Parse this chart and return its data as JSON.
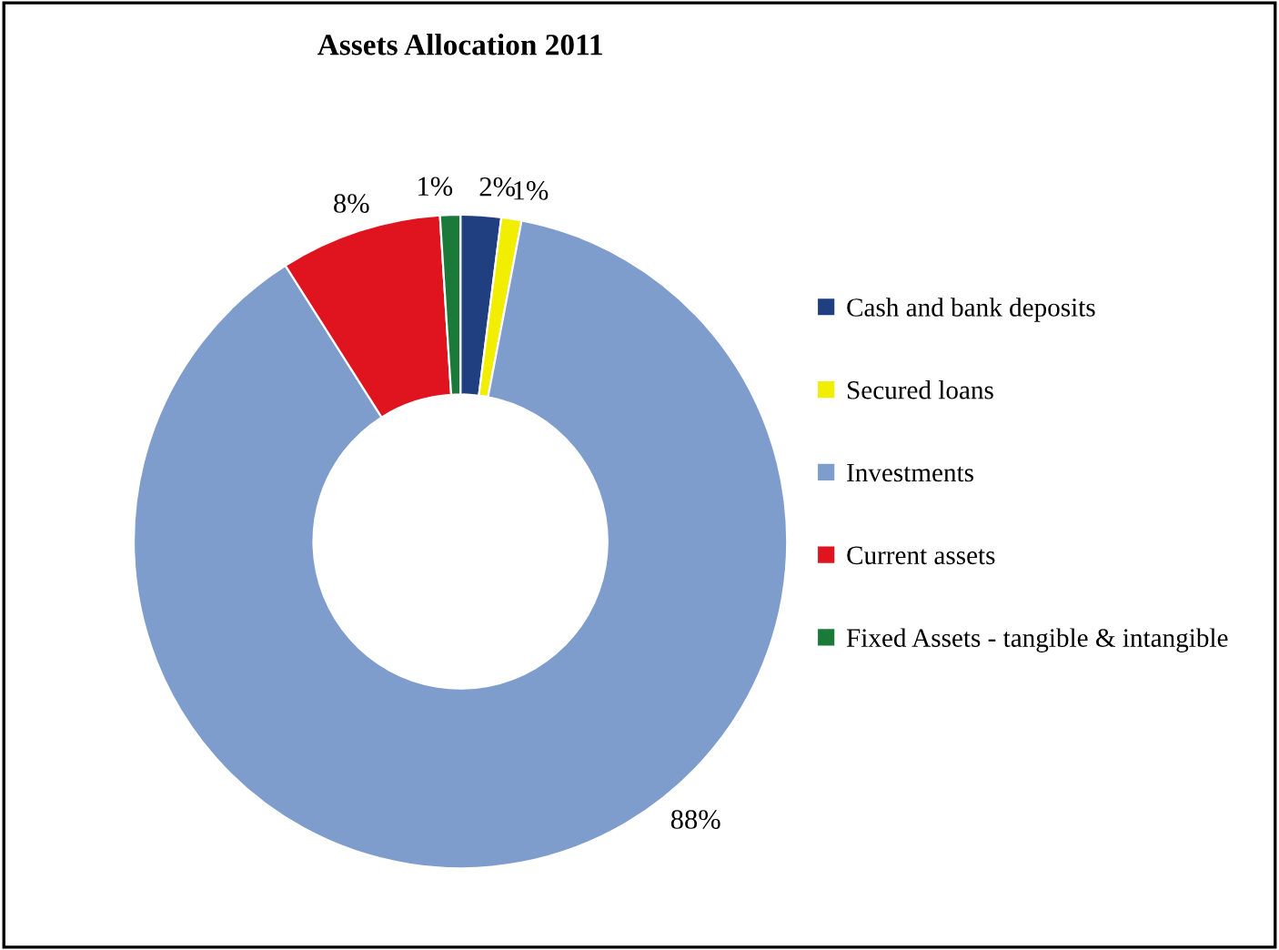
{
  "chart_data": {
    "type": "donut",
    "title": "Assets Allocation 2011",
    "categories": [
      "Cash and bank deposits",
      "Secured loans",
      "Investments",
      "Current assets",
      "Fixed Assets - tangible & intangible"
    ],
    "values": [
      2,
      1,
      88,
      8,
      1
    ],
    "colors": [
      "#1f3f80",
      "#f2ee00",
      "#7f9dcc",
      "#e0141e",
      "#1b7a3a"
    ],
    "value_labels": [
      "2%",
      "1%",
      "88%",
      "8%",
      "1%"
    ],
    "legend": "right"
  }
}
